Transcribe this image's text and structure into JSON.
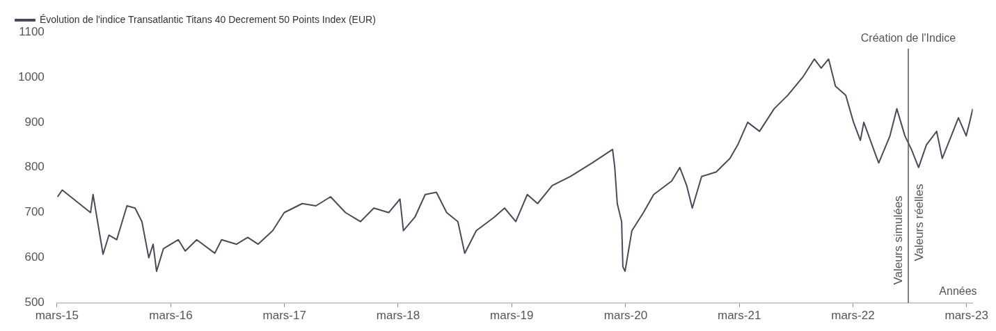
{
  "chart_data": {
    "type": "line",
    "xlabel": "Années",
    "legend": "top left",
    "marker": "none",
    "line_style": "solid",
    "grid": false,
    "xlim": [
      "2015-03-01",
      "2023-03-21"
    ],
    "ylim": [
      500,
      1100
    ],
    "yticks": [
      500,
      600,
      700,
      800,
      900,
      1000,
      1100
    ],
    "xticks": [
      {
        "value": "2015-03-01",
        "label": "mars-15"
      },
      {
        "value": "2016-03-01",
        "label": "mars-16"
      },
      {
        "value": "2017-03-01",
        "label": "mars-17"
      },
      {
        "value": "2018-03-01",
        "label": "mars-18"
      },
      {
        "value": "2019-03-01",
        "label": "mars-19"
      },
      {
        "value": "2020-03-01",
        "label": "mars-20"
      },
      {
        "value": "2021-03-01",
        "label": "mars-21"
      },
      {
        "value": "2022-03-01",
        "label": "mars-22"
      },
      {
        "value": "2023-03-01",
        "label": "mars-23"
      }
    ],
    "ref_lines": [
      {
        "axis": "x",
        "value": "2022-08-26",
        "label": "Création de l'Indice",
        "color": "#555555"
      }
    ],
    "annotations": [
      "Valeurs simulées",
      "Valeurs réelles"
    ],
    "series": [
      {
        "name": "Évolution de l'indice Transatlantic Titans 40 Decrement 50 Points Index (EUR)",
        "color": "#4a4a5a",
        "x": [
          "2015-03-03",
          "2015-03-18",
          "2015-06-17",
          "2015-06-25",
          "2015-07-27",
          "2015-08-15",
          "2015-09-09",
          "2015-10-12",
          "2015-11-07",
          "2015-11-29",
          "2015-12-21",
          "2016-01-04",
          "2016-01-15",
          "2016-02-06",
          "2016-03-25",
          "2016-04-16",
          "2016-05-23",
          "2016-07-20",
          "2016-08-11",
          "2016-09-28",
          "2016-11-03",
          "2016-12-06",
          "2017-01-22",
          "2017-02-28",
          "2017-04-27",
          "2017-06-10",
          "2017-07-27",
          "2017-09-13",
          "2017-10-31",
          "2017-12-13",
          "2018-01-30",
          "2018-03-07",
          "2018-03-18",
          "2018-04-24",
          "2018-05-27",
          "2018-07-02",
          "2018-08-04",
          "2018-09-09",
          "2018-10-01",
          "2018-11-07",
          "2019-01-04",
          "2019-02-06",
          "2019-03-14",
          "2019-04-20",
          "2019-05-23",
          "2019-07-09",
          "2019-09-05",
          "2019-11-14",
          "2020-01-19",
          "2020-01-26",
          "2020-02-03",
          "2020-02-17",
          "2020-02-21",
          "2020-02-28",
          "2020-03-21",
          "2020-04-27",
          "2020-05-30",
          "2020-07-27",
          "2020-08-22",
          "2020-09-13",
          "2020-10-01",
          "2020-10-31",
          "2020-12-17",
          "2021-01-30",
          "2021-02-24",
          "2021-03-28",
          "2021-05-05",
          "2021-06-21",
          "2021-08-04",
          "2021-09-21",
          "2021-10-28",
          "2021-11-19",
          "2021-12-13",
          "2022-01-04",
          "2022-02-06",
          "2022-03-03",
          "2022-03-25",
          "2022-04-05",
          "2022-05-12",
          "2022-05-23",
          "2022-06-28",
          "2022-07-20",
          "2022-08-15",
          "2022-09-05",
          "2022-09-28",
          "2022-10-23",
          "2022-11-25",
          "2022-12-13",
          "2023-01-11",
          "2023-02-03",
          "2023-02-28",
          "2023-03-11",
          "2023-03-21"
        ],
        "values": [
          735,
          750,
          700,
          740,
          608,
          650,
          640,
          715,
          710,
          680,
          600,
          630,
          570,
          620,
          640,
          615,
          640,
          610,
          640,
          630,
          645,
          630,
          660,
          700,
          720,
          715,
          735,
          700,
          680,
          710,
          700,
          730,
          660,
          690,
          740,
          745,
          700,
          680,
          610,
          660,
          690,
          710,
          680,
          740,
          720,
          760,
          780,
          810,
          840,
          800,
          720,
          680,
          580,
          570,
          660,
          700,
          740,
          770,
          800,
          760,
          710,
          780,
          790,
          820,
          850,
          900,
          880,
          930,
          960,
          1000,
          1040,
          1020,
          1040,
          980,
          960,
          900,
          860,
          900,
          830,
          810,
          870,
          930,
          870,
          840,
          800,
          850,
          880,
          820,
          870,
          910,
          870,
          900,
          930
        ]
      }
    ]
  }
}
